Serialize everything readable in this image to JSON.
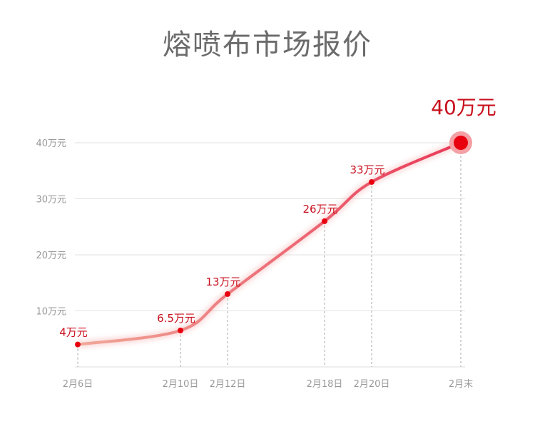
{
  "chart_data": {
    "type": "line",
    "title": "熔喷布市场报价",
    "categories": [
      "2月6日",
      "2月10日",
      "2月12日",
      "2月18日",
      "2月20日",
      "2月末"
    ],
    "values": [
      4,
      6.5,
      13,
      26,
      33,
      40
    ],
    "data_labels": [
      "4万元",
      "6.5万元",
      "13万元",
      "26万元",
      "33万元",
      "40万元"
    ],
    "y_ticks": [
      10,
      20,
      30,
      40
    ],
    "y_tick_labels": [
      "10万元",
      "20万元",
      "30万元",
      "40万元"
    ],
    "ylim": [
      0,
      40
    ],
    "xlabel": "",
    "ylabel": "",
    "grid": true,
    "colors": {
      "line_start": "#f0a898",
      "line_end": "#e83858",
      "point": "#e8000e",
      "label": "#c8101e"
    }
  }
}
